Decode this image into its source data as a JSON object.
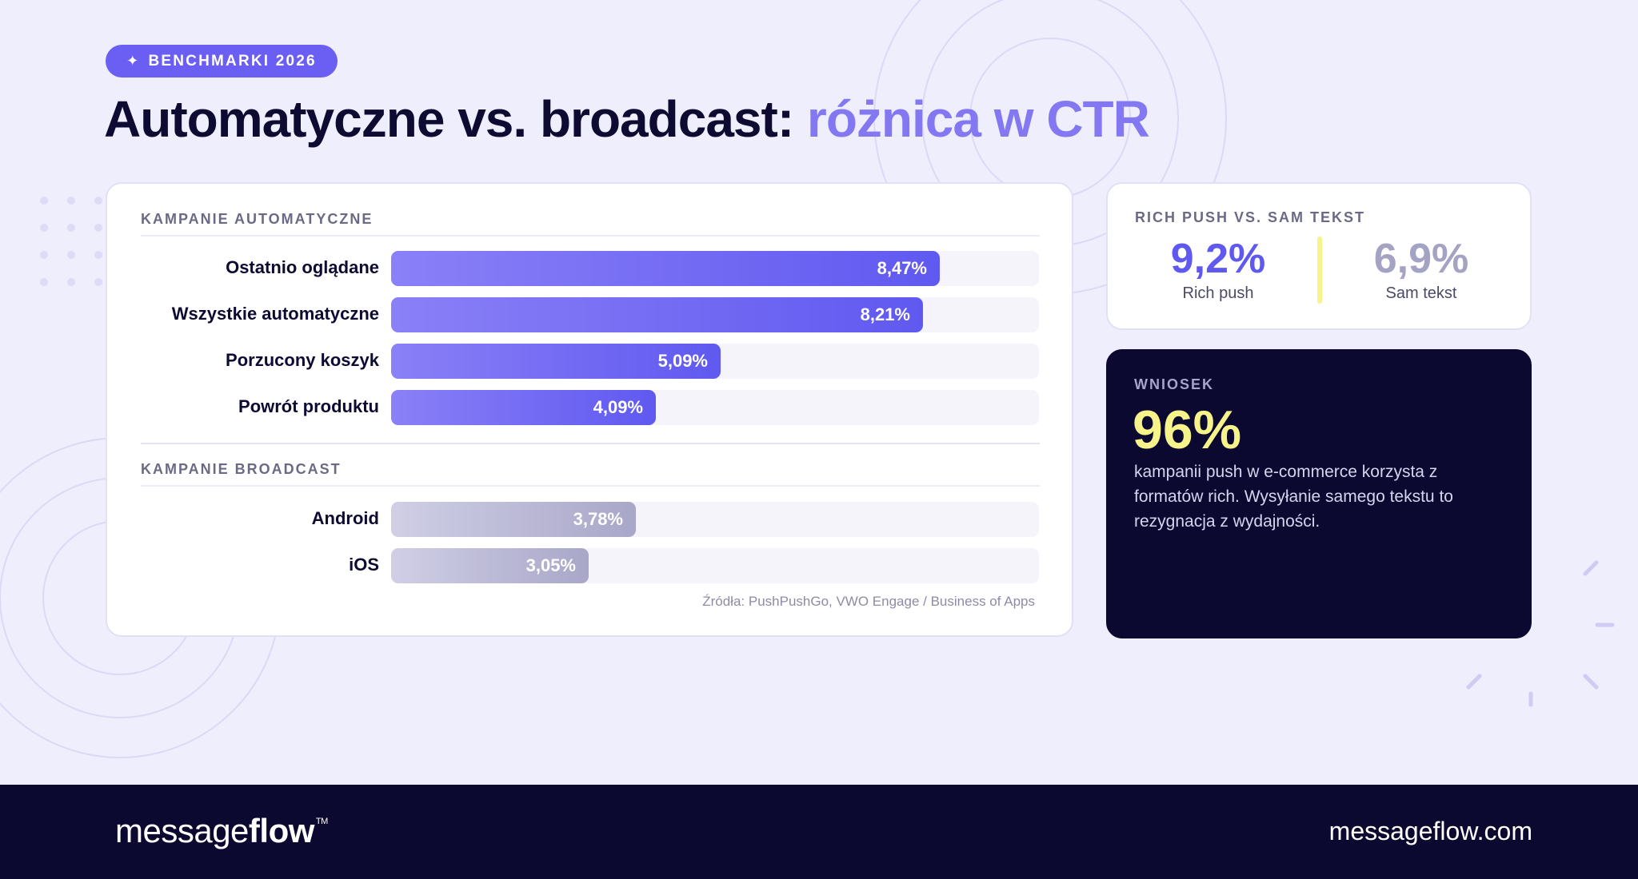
{
  "badge": {
    "icon": "sparkle-icon",
    "label": "BENCHMARKI 2026"
  },
  "title": {
    "main": "Automatyczne vs. broadcast: ",
    "accent": "różnica w CTR"
  },
  "colors": {
    "accent": "#6a5ff2",
    "accent_light": "#8378f2",
    "navy": "#0b0930",
    "yellow": "#f6f38a",
    "gray_bar": "#a9a7c8"
  },
  "chart_data": {
    "type": "bar",
    "orientation": "horizontal",
    "value_suffix": "%",
    "xlim": [
      0,
      10
    ],
    "groups": [
      {
        "name": "KAMPANIE AUTOMATYCZNE",
        "categories": [
          "Ostatnio oglądane",
          "Wszystkie automatyczne",
          "Porzucony koszyk",
          "Powrót produktu"
        ],
        "values": [
          8.47,
          8.21,
          5.09,
          4.09
        ],
        "labels": [
          "8,47%",
          "8,21%",
          "5,09%",
          "4,09%"
        ]
      },
      {
        "name": "KAMPANIE BROADCAST",
        "categories": [
          "Android",
          "iOS"
        ],
        "values": [
          3.78,
          3.05
        ],
        "labels": [
          "3,78%",
          "3,05%"
        ]
      }
    ],
    "source": "Źródła: PushPushGo, VWO Engage / Business of Apps"
  },
  "rich": {
    "label": "RICH PUSH VS. SAM TEKST",
    "a": {
      "value": "9,2%",
      "caption": "Rich push"
    },
    "b": {
      "value": "6,9%",
      "caption": "Sam tekst"
    }
  },
  "conclusion": {
    "label": "WNIOSEK",
    "value": "96%",
    "text": "kampanii push w e-commerce korzysta z formatów rich. Wysyłanie samego tekstu to rezygnacja z wydajności."
  },
  "footer": {
    "logo_light": "message",
    "logo_bold": "flow",
    "logo_tm": "TM",
    "site": "messageflow.com"
  }
}
